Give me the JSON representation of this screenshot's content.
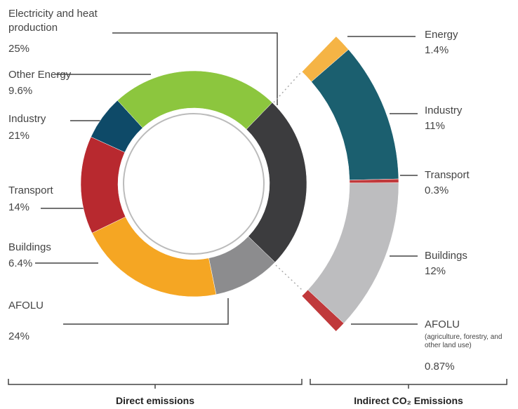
{
  "chart_data": [
    {
      "type": "donut",
      "title": "Direct emissions",
      "categories": [
        "Electricity and heat production",
        "Other Energy",
        "Industry",
        "Transport",
        "Buildings",
        "AFOLU"
      ],
      "values": [
        25,
        9.6,
        21,
        14,
        6.4,
        24
      ],
      "value_labels": [
        "25%",
        "9.6%",
        "21%",
        "14%",
        "6.4%",
        "24%"
      ],
      "colors": [
        "#3c3c3e",
        "#8c8c8e",
        "#f5a623",
        "#b8292f",
        "#0e4a68",
        "#8cc63e"
      ]
    },
    {
      "type": "arc",
      "title": "Indirect CO₂ Emissions",
      "categories": [
        "Energy",
        "Industry",
        "Transport",
        "Buildings",
        "AFOLU"
      ],
      "subtitles": [
        null,
        null,
        null,
        null,
        "(agriculture, forestry, and other land use)"
      ],
      "values": [
        1.4,
        11,
        0.3,
        12,
        0.87
      ],
      "value_labels": [
        "1.4%",
        "11%",
        "0.3%",
        "12%",
        "0.87%"
      ],
      "colors": [
        "#f5b445",
        "#1b5f6f",
        "#c0393b",
        "#bdbdbf",
        "#c0393b"
      ]
    }
  ]
}
